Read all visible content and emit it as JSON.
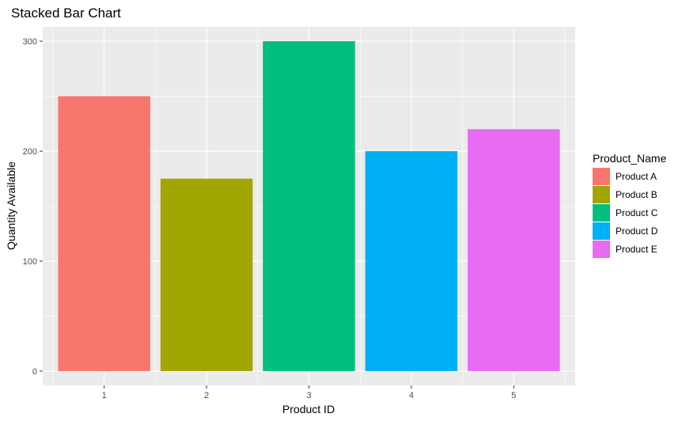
{
  "chart_data": {
    "type": "bar",
    "title": "Stacked Bar Chart",
    "xlabel": "Product ID",
    "ylabel": "Quantity Available",
    "categories": [
      "1",
      "2",
      "3",
      "4",
      "5"
    ],
    "values": [
      250,
      175,
      300,
      200,
      220
    ],
    "bar_series": [
      "Product A",
      "Product B",
      "Product C",
      "Product D",
      "Product E"
    ],
    "colors": [
      "#F8766D",
      "#A3A500",
      "#00BF7D",
      "#00B0F6",
      "#E76BF3"
    ],
    "ylim": [
      -13,
      313
    ],
    "yticks": [
      0,
      100,
      200,
      300
    ],
    "grid": true,
    "legend": {
      "title": "Product_Name",
      "position": "right",
      "items": [
        "Product A",
        "Product B",
        "Product C",
        "Product D",
        "Product E"
      ]
    }
  }
}
